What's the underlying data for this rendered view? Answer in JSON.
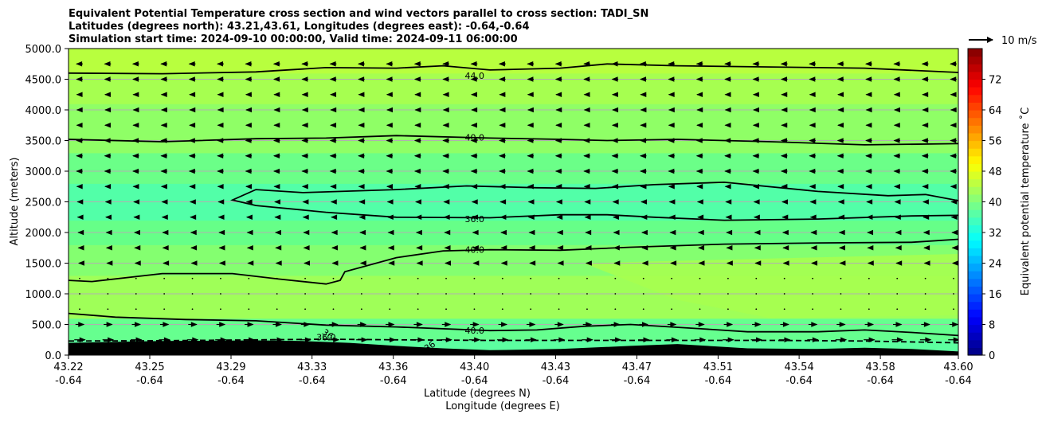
{
  "chart_data": {
    "type": "heatmap",
    "title_lines": [
      "Equivalent Potential Temperature cross section and wind vectors parallel to cross section: TADI_SN",
      "Latitudes (degrees north): 43.21,43.61, Longitudes (degrees east): -0.64,-0.64",
      "Simulation start time: 2024-09-10 00:00:00, Valid time: 2024-09-11 06:00:00"
    ],
    "xlabel_lines": [
      "Latitude (degrees N)",
      "Longitude (degrees E)"
    ],
    "ylabel": "Altitude (meters)",
    "xlim": [
      43.22,
      43.6
    ],
    "ylim": [
      0,
      5000
    ],
    "x_ticks": [
      {
        "lat": "43.22",
        "lon": "-0.64",
        "value": 43.22
      },
      {
        "lat": "43.25",
        "lon": "-0.64",
        "value": 43.2547
      },
      {
        "lat": "43.29",
        "lon": "-0.64",
        "value": 43.2894
      },
      {
        "lat": "43.33",
        "lon": "-0.64",
        "value": 43.324
      },
      {
        "lat": "43.36",
        "lon": "-0.64",
        "value": 43.3587
      },
      {
        "lat": "43.40",
        "lon": "-0.64",
        "value": 43.3934
      },
      {
        "lat": "43.43",
        "lon": "-0.64",
        "value": 43.428
      },
      {
        "lat": "43.47",
        "lon": "-0.64",
        "value": 43.4627
      },
      {
        "lat": "43.51",
        "lon": "-0.64",
        "value": 43.4974
      },
      {
        "lat": "43.54",
        "lon": "-0.64",
        "value": 43.532
      },
      {
        "lat": "43.58",
        "lon": "-0.64",
        "value": 43.5667
      },
      {
        "lat": "43.60",
        "lon": "-0.64",
        "value": 43.6
      }
    ],
    "y_ticks": [
      {
        "label": "0.0",
        "value": 0
      },
      {
        "label": "500.0",
        "value": 500
      },
      {
        "label": "1000.0",
        "value": 1000
      },
      {
        "label": "1500.0",
        "value": 1500
      },
      {
        "label": "2000.0",
        "value": 2000
      },
      {
        "label": "2500.0",
        "value": 2500
      },
      {
        "label": "3000.0",
        "value": 3000
      },
      {
        "label": "3500.0",
        "value": 3500
      },
      {
        "label": "4000.0",
        "value": 4000
      },
      {
        "label": "4500.0",
        "value": 4500
      },
      {
        "label": "5000.0",
        "value": 5000
      }
    ],
    "grid": "horizontal",
    "colorbar": {
      "label": "Equivalent potential temperature $^\\circ$C",
      "label_display": "Equivalent potential temperature ˚C",
      "range": [
        0,
        80
      ],
      "ticks": [
        "0",
        "8",
        "16",
        "24",
        "32",
        "40",
        "48",
        "56",
        "64",
        "72"
      ],
      "tick_values": [
        0,
        8,
        16,
        24,
        32,
        40,
        48,
        56,
        64,
        72
      ],
      "colormap": "jet",
      "levels": 40
    },
    "wind_key": {
      "label": "10 m/s",
      "speed": 10
    },
    "bands": [
      {
        "from_alt": 0,
        "to_alt": 250,
        "theta_e": 37,
        "color": "#5cffa0"
      },
      {
        "from_alt": 250,
        "to_alt": 600,
        "theta_e": 38,
        "color": "#66ff8f"
      },
      {
        "from_alt": 600,
        "to_alt": 1300,
        "theta_e": 42,
        "color": "#9fff58"
      },
      {
        "from_alt": 1300,
        "to_alt": 1800,
        "theta_e": 40,
        "color": "#84ff70"
      },
      {
        "from_alt": 1800,
        "to_alt": 2200,
        "theta_e": 38,
        "color": "#66ff88"
      },
      {
        "from_alt": 2200,
        "to_alt": 2800,
        "theta_e": 36,
        "color": "#52ffa8"
      },
      {
        "from_alt": 2800,
        "to_alt": 3300,
        "theta_e": 38,
        "color": "#6bff88"
      },
      {
        "from_alt": 3300,
        "to_alt": 4100,
        "theta_e": 40,
        "color": "#8fff66"
      },
      {
        "from_alt": 4100,
        "to_alt": 4600,
        "theta_e": 42,
        "color": "#a6ff50"
      },
      {
        "from_alt": 4600,
        "to_alt": 5000,
        "theta_e": 44,
        "color": "#b8ff3e"
      }
    ],
    "warm_patch": {
      "theta_e": 42,
      "color": "#a6ff50",
      "points": [
        [
          43.44,
          1500
        ],
        [
          43.6,
          1650
        ],
        [
          43.6,
          650
        ],
        [
          43.52,
          600
        ],
        [
          43.48,
          900
        ]
      ]
    },
    "terrain": {
      "color": "#000000",
      "points": [
        [
          43.22,
          200
        ],
        [
          43.26,
          230
        ],
        [
          43.3,
          240
        ],
        [
          43.32,
          230
        ],
        [
          43.34,
          200
        ],
        [
          43.36,
          150
        ],
        [
          43.38,
          110
        ],
        [
          43.4,
          80
        ],
        [
          43.43,
          100
        ],
        [
          43.46,
          150
        ],
        [
          43.48,
          180
        ],
        [
          43.51,
          110
        ],
        [
          43.54,
          100
        ],
        [
          43.56,
          120
        ],
        [
          43.58,
          100
        ],
        [
          43.6,
          60
        ]
      ]
    },
    "contours": [
      {
        "level": "44.0",
        "label_at": [
          43.3934,
          4560
        ],
        "points": [
          [
            43.22,
            4600
          ],
          [
            43.26,
            4590
          ],
          [
            43.3,
            4620
          ],
          [
            43.33,
            4690
          ],
          [
            43.36,
            4680
          ],
          [
            43.38,
            4720
          ],
          [
            43.4,
            4650
          ],
          [
            43.43,
            4680
          ],
          [
            43.45,
            4750
          ],
          [
            43.48,
            4720
          ],
          [
            43.52,
            4700
          ],
          [
            43.56,
            4680
          ],
          [
            43.6,
            4610
          ]
        ]
      },
      {
        "level": "40.0",
        "label_at": [
          43.3934,
          3555
        ],
        "points": [
          [
            43.22,
            3520
          ],
          [
            43.26,
            3480
          ],
          [
            43.3,
            3530
          ],
          [
            43.33,
            3540
          ],
          [
            43.36,
            3580
          ],
          [
            43.4,
            3540
          ],
          [
            43.43,
            3520
          ],
          [
            43.45,
            3500
          ],
          [
            43.48,
            3520
          ],
          [
            43.52,
            3480
          ],
          [
            43.56,
            3430
          ],
          [
            43.6,
            3450
          ]
        ]
      },
      {
        "level": "36.0",
        "label_at": [
          43.3934,
          2220
        ],
        "closed_right": true,
        "points": [
          [
            43.6,
            2520
          ],
          [
            43.586,
            2620
          ],
          [
            43.57,
            2600
          ],
          [
            43.54,
            2670
          ],
          [
            43.5,
            2820
          ],
          [
            43.47,
            2780
          ],
          [
            43.445,
            2720
          ],
          [
            43.42,
            2730
          ],
          [
            43.39,
            2760
          ],
          [
            43.36,
            2700
          ],
          [
            43.32,
            2650
          ],
          [
            43.3,
            2700
          ],
          [
            43.29,
            2530
          ],
          [
            43.3,
            2440
          ],
          [
            43.33,
            2330
          ],
          [
            43.36,
            2250
          ],
          [
            43.4,
            2240
          ],
          [
            43.43,
            2290
          ],
          [
            43.45,
            2290
          ],
          [
            43.47,
            2250
          ],
          [
            43.5,
            2200
          ],
          [
            43.54,
            2220
          ],
          [
            43.58,
            2270
          ],
          [
            43.6,
            2280
          ]
        ]
      },
      {
        "level": "40.0",
        "label_at": [
          43.3934,
          1720
        ],
        "points": [
          [
            43.22,
            1220
          ],
          [
            43.23,
            1200
          ],
          [
            43.26,
            1330
          ],
          [
            43.29,
            1330
          ],
          [
            43.31,
            1240
          ],
          [
            43.33,
            1160
          ],
          [
            43.336,
            1220
          ],
          [
            43.338,
            1360
          ],
          [
            43.36,
            1590
          ],
          [
            43.38,
            1700
          ],
          [
            43.4,
            1720
          ],
          [
            43.43,
            1710
          ],
          [
            43.46,
            1760
          ],
          [
            43.5,
            1810
          ],
          [
            43.54,
            1830
          ],
          [
            43.58,
            1840
          ],
          [
            43.6,
            1890
          ]
        ]
      },
      {
        "level": "40.0",
        "label_at": [
          43.3934,
          400
        ],
        "points": [
          [
            43.22,
            680
          ],
          [
            43.24,
            620
          ],
          [
            43.27,
            580
          ],
          [
            43.3,
            560
          ],
          [
            43.33,
            490
          ],
          [
            43.36,
            460
          ],
          [
            43.4,
            400
          ],
          [
            43.42,
            410
          ],
          [
            43.44,
            470
          ],
          [
            43.46,
            500
          ],
          [
            43.49,
            430
          ],
          [
            43.51,
            380
          ],
          [
            43.54,
            380
          ],
          [
            43.56,
            410
          ],
          [
            43.58,
            370
          ],
          [
            43.6,
            320
          ]
        ]
      },
      {
        "level": "36.0",
        "label_at": [
          43.33,
          290
        ],
        "dashed": true,
        "points": [
          [
            43.22,
            230
          ],
          [
            43.26,
            235
          ],
          [
            43.3,
            250
          ],
          [
            43.33,
            260
          ],
          [
            43.36,
            250
          ],
          [
            43.4,
            240
          ],
          [
            43.44,
            240
          ],
          [
            43.48,
            240
          ],
          [
            43.52,
            240
          ],
          [
            43.56,
            230
          ],
          [
            43.6,
            200
          ]
        ]
      }
    ],
    "contour_extra_labels": [
      {
        "text": "36",
        "at": [
          43.33,
          300
        ],
        "rotate": 35
      },
      {
        "text": "36",
        "at": [
          43.375,
          105
        ],
        "rotate": -35
      }
    ],
    "wind_field": {
      "altitudes": [
        250,
        500,
        750,
        1000,
        1250,
        1500,
        1750,
        2000,
        2250,
        2500,
        2750,
        3000,
        3250,
        3500,
        3750,
        4000,
        4250,
        4500,
        4750
      ],
      "columns": 32,
      "u_profile": [
        4.5,
        3.5,
        0.0,
        0.0,
        -0.3,
        -0.7,
        -1.0,
        -1.2,
        -1.6,
        -1.8,
        -2.2,
        -2.5,
        -2.5,
        -2.5,
        -2.3,
        -2.2,
        -2.3,
        -2.5,
        -2.6
      ]
    }
  }
}
